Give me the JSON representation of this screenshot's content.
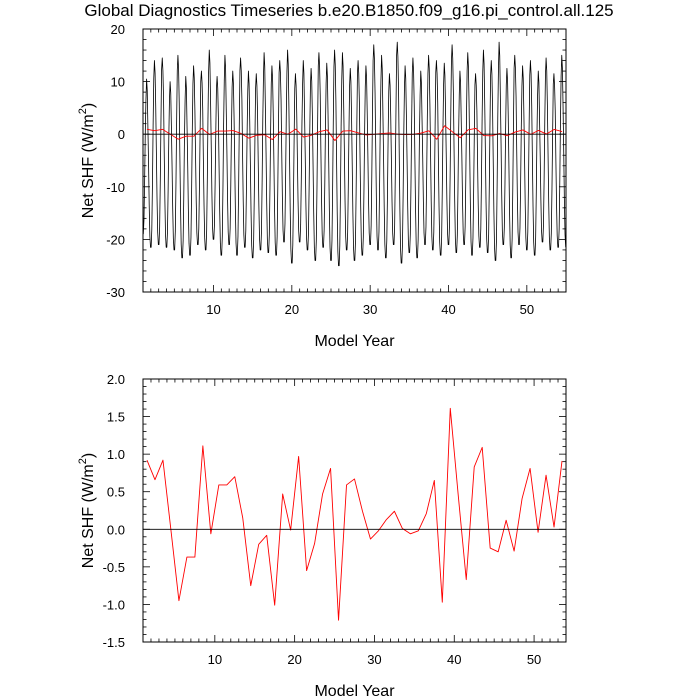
{
  "figure": {
    "title": "Global Diagnostics Timeseries b.e20.B1850.f09_g16.pi_control.all.125"
  },
  "colors": {
    "monthly_line": "#000000",
    "annual_line": "#ff0000",
    "zero_line": "#000000"
  },
  "chart_data": [
    {
      "type": "line",
      "xlabel": "Model Year",
      "ylabel_main": "Net SHF (W/m",
      "ylabel_sup": "2",
      "ylabel_close": ")",
      "xlim": [
        1,
        55
      ],
      "ylim": [
        -30,
        20
      ],
      "xticks": [
        10,
        20,
        30,
        40,
        50
      ],
      "yticks": [
        -30,
        -20,
        -10,
        0,
        10,
        20
      ],
      "ytick_labels": [
        "-30",
        "-20",
        "-10",
        "0",
        "10",
        "20"
      ],
      "reference_line": 0,
      "series": [
        {
          "kind": "monthly",
          "start_year": 1,
          "points_per_year": 12,
          "winter_min": [
            -19.0,
            -21.5,
            -21.0,
            -21.5,
            -22.0,
            -23.5,
            -23.0,
            -21.0,
            -22.0,
            -20.0,
            -23.0,
            -21.0,
            -23.0,
            -21.5,
            -23.5,
            -22.0,
            -22.5,
            -23.0,
            -20.5,
            -24.5,
            -20.5,
            -22.0,
            -24.0,
            -21.5,
            -24.0,
            -25.0,
            -22.0,
            -24.0,
            -23.0,
            -21.0,
            -22.0,
            -23.5,
            -21.0,
            -24.5,
            -22.5,
            -23.5,
            -21.0,
            -22.0,
            -23.0,
            -21.0,
            -22.5,
            -21.0,
            -23.0,
            -21.5,
            -22.5,
            -24.0,
            -21.0,
            -23.5,
            -21.0,
            -22.0,
            -23.0,
            -20.5,
            -22.0,
            -21.5
          ],
          "summer_max": [
            10.5,
            14.0,
            14.5,
            10.0,
            15.0,
            11.0,
            13.0,
            12.0,
            16.0,
            11.0,
            15.0,
            12.0,
            14.5,
            12.0,
            11.5,
            15.5,
            13.0,
            14.0,
            16.0,
            11.5,
            14.0,
            12.5,
            15.5,
            13.5,
            16.0,
            15.5,
            12.5,
            14.0,
            13.0,
            17.0,
            15.0,
            11.5,
            17.5,
            13.0,
            14.5,
            12.0,
            15.0,
            14.0,
            13.5,
            17.0,
            12.0,
            15.5,
            11.5,
            16.0,
            14.0,
            17.5,
            12.5,
            15.0,
            13.0,
            14.0,
            12.0,
            14.5,
            11.5,
            15.0
          ]
        },
        {
          "kind": "annual",
          "x": [
            1.5,
            2.5,
            3.5,
            4.5,
            5.5,
            6.5,
            7.5,
            8.5,
            9.5,
            10.5,
            11.5,
            12.5,
            13.5,
            14.5,
            15.5,
            16.5,
            17.5,
            18.5,
            19.5,
            20.5,
            21.5,
            22.5,
            23.5,
            24.5,
            25.5,
            26.5,
            27.5,
            28.5,
            29.5,
            30.5,
            31.5,
            32.5,
            33.5,
            34.5,
            35.5,
            36.5,
            37.5,
            38.5,
            39.5,
            40.5,
            41.5,
            42.5,
            43.5,
            44.5,
            45.5,
            46.5,
            47.5,
            48.5,
            49.5,
            50.5,
            51.5,
            52.5,
            53.5,
            54.5
          ],
          "values": [
            0.92,
            0.66,
            0.92,
            -0.01,
            -0.95,
            -0.37,
            -0.37,
            1.11,
            -0.06,
            0.59,
            0.59,
            0.7,
            0.15,
            -0.75,
            -0.2,
            -0.08,
            -1.01,
            0.47,
            -0.01,
            0.97,
            -0.55,
            -0.19,
            0.47,
            0.81,
            -1.21,
            0.59,
            0.67,
            0.24,
            -0.13,
            -0.02,
            0.13,
            0.24,
            0.01,
            -0.06,
            -0.02,
            0.21,
            0.65,
            -0.97,
            1.61,
            0.45,
            -0.67,
            0.83,
            1.09,
            -0.25,
            -0.3,
            0.12,
            -0.29,
            0.41,
            0.81,
            -0.04,
            0.72,
            0.03,
            0.91,
            0.5
          ]
        }
      ]
    },
    {
      "type": "line",
      "xlabel": "Model Year",
      "ylabel_main": "Net SHF (W/m",
      "ylabel_sup": "2",
      "ylabel_close": ")",
      "xlim": [
        1,
        54
      ],
      "ylim": [
        -1.5,
        2.0
      ],
      "xticks": [
        10,
        20,
        30,
        40,
        50
      ],
      "yticks": [
        -1.5,
        -1.0,
        -0.5,
        0.0,
        0.5,
        1.0,
        1.5,
        2.0
      ],
      "ytick_labels": [
        "-1.5",
        "-1.0",
        "-0.5",
        "0.0",
        "0.5",
        "1.0",
        "1.5",
        "2.0"
      ],
      "reference_line": 0,
      "series": [
        {
          "kind": "annual",
          "x": [
            1.5,
            2.5,
            3.5,
            4.5,
            5.5,
            6.5,
            7.5,
            8.5,
            9.5,
            10.5,
            11.5,
            12.5,
            13.5,
            14.5,
            15.5,
            16.5,
            17.5,
            18.5,
            19.5,
            20.5,
            21.5,
            22.5,
            23.5,
            24.5,
            25.5,
            26.5,
            27.5,
            28.5,
            29.5,
            30.5,
            31.5,
            32.5,
            33.5,
            34.5,
            35.5,
            36.5,
            37.5,
            38.5,
            39.5,
            40.5,
            41.5,
            42.5,
            43.5,
            44.5,
            45.5,
            46.5,
            47.5,
            48.5,
            49.5,
            50.5,
            51.5,
            52.5,
            53.5
          ],
          "values": [
            0.92,
            0.66,
            0.92,
            -0.01,
            -0.95,
            -0.37,
            -0.37,
            1.11,
            -0.06,
            0.59,
            0.59,
            0.7,
            0.15,
            -0.75,
            -0.2,
            -0.08,
            -1.01,
            0.47,
            -0.01,
            0.97,
            -0.55,
            -0.19,
            0.47,
            0.81,
            -1.21,
            0.59,
            0.67,
            0.24,
            -0.13,
            -0.02,
            0.13,
            0.24,
            0.01,
            -0.06,
            -0.02,
            0.21,
            0.65,
            -0.97,
            1.61,
            0.45,
            -0.67,
            0.83,
            1.09,
            -0.25,
            -0.3,
            0.12,
            -0.29,
            0.41,
            0.81,
            -0.04,
            0.72,
            0.03,
            0.91
          ]
        }
      ]
    }
  ]
}
